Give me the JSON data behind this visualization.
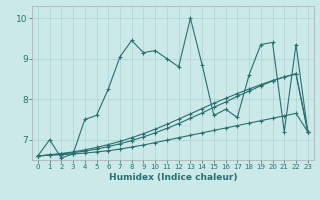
{
  "xlabel": "Humidex (Indice chaleur)",
  "xlim": [
    -0.5,
    23.5
  ],
  "ylim": [
    6.5,
    10.3
  ],
  "yticks": [
    7,
    8,
    9,
    10
  ],
  "xticks": [
    0,
    1,
    2,
    3,
    4,
    5,
    6,
    7,
    8,
    9,
    10,
    11,
    12,
    13,
    14,
    15,
    16,
    17,
    18,
    19,
    20,
    21,
    22,
    23
  ],
  "bg_color": "#cce9e9",
  "line_color": "#2a6e6e",
  "series": [
    [
      6.6,
      7.0,
      6.55,
      6.65,
      7.5,
      7.6,
      8.25,
      9.05,
      9.45,
      9.15,
      9.2,
      9.0,
      8.8,
      10.0,
      8.85,
      7.6,
      7.75,
      7.55,
      8.6,
      9.35,
      9.4,
      7.2,
      9.35,
      7.2
    ],
    [
      6.6,
      6.62,
      6.63,
      6.65,
      6.67,
      6.7,
      6.73,
      6.77,
      6.82,
      6.87,
      6.93,
      6.99,
      7.05,
      7.11,
      7.17,
      7.23,
      7.29,
      7.35,
      7.41,
      7.47,
      7.53,
      7.59,
      7.65,
      7.2
    ],
    [
      6.6,
      6.62,
      6.65,
      6.68,
      6.72,
      6.77,
      6.83,
      6.9,
      6.98,
      7.07,
      7.17,
      7.28,
      7.4,
      7.53,
      7.66,
      7.8,
      7.93,
      8.07,
      8.2,
      8.33,
      8.45,
      8.55,
      8.62,
      7.2
    ],
    [
      6.6,
      6.63,
      6.66,
      6.7,
      6.75,
      6.81,
      6.88,
      6.96,
      7.05,
      7.15,
      7.26,
      7.38,
      7.51,
      7.64,
      7.77,
      7.9,
      8.02,
      8.14,
      8.25,
      8.36,
      8.46,
      8.55,
      8.63,
      7.2
    ]
  ]
}
